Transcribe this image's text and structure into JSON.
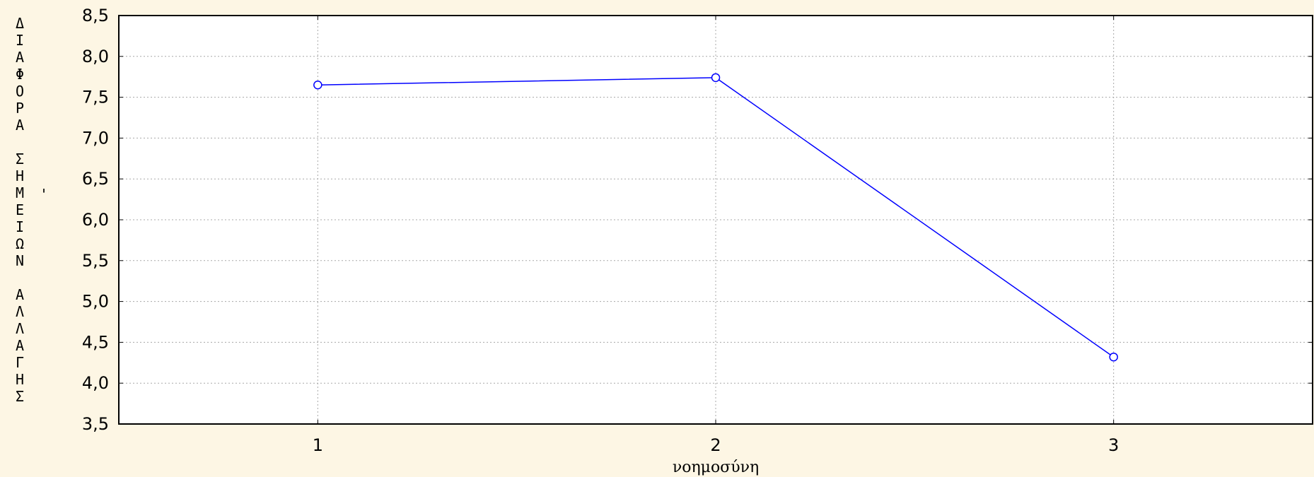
{
  "chart_data": {
    "type": "line",
    "title": "",
    "xlabel": "νοημοσύνη",
    "ylabel": "ΔΙΑΦΟΡΑ ΣΗΜΕΙΩΝ ΑΛΛΑΓΗΣ",
    "ylabel_letters": [
      "Δ",
      "Ι",
      "Α",
      "Φ",
      "Ο",
      "Ρ",
      "Α",
      "",
      "Σ",
      "Η",
      "Μ",
      "Ε",
      "Ι",
      "Ω",
      "Ν",
      "",
      "Α",
      "Λ",
      "Λ",
      "Α",
      "Γ",
      "Η",
      "Σ"
    ],
    "ylabel_mark": "'",
    "categories": [
      "1",
      "2",
      "3"
    ],
    "x": [
      1,
      2,
      3
    ],
    "xlim": [
      0.5,
      3.5
    ],
    "ylim": [
      3.5,
      8.5
    ],
    "yticks": [
      3.5,
      4.0,
      4.5,
      5.0,
      5.5,
      6.0,
      6.5,
      7.0,
      7.5,
      8.0,
      8.5
    ],
    "ytick_labels": [
      "3,5",
      "4,0",
      "4,5",
      "5,0",
      "5,5",
      "6,0",
      "6,5",
      "7,0",
      "7,5",
      "8,0",
      "8,5"
    ],
    "series": [
      {
        "values": [
          7.65,
          7.74,
          4.32
        ],
        "color": "#0000ff",
        "marker": "circle"
      }
    ],
    "grid": true
  },
  "colors": {
    "background": "#fdf6e4",
    "plot_background": "#ffffff",
    "grid": "#a8a8a8",
    "series": "#0000ff"
  }
}
